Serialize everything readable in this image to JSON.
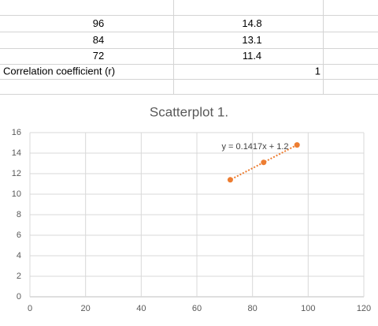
{
  "table": {
    "rows": [
      [
        96,
        14.8
      ],
      [
        84,
        13.1
      ],
      [
        72,
        11.4
      ],
      [
        "Correlation coefficient (r)",
        1
      ]
    ]
  },
  "chart_data": {
    "type": "scatter",
    "title": "Scatterplot 1.",
    "x": [
      96,
      84,
      72
    ],
    "y": [
      14.8,
      13.1,
      11.4
    ],
    "color": "#ed7d31",
    "trendline_label": "y = 0.1417x + 1.2",
    "xlim": [
      0,
      120
    ],
    "xticks": [
      0,
      20,
      40,
      60,
      80,
      100,
      120
    ],
    "ylim": [
      0,
      16
    ],
    "yticks": [
      0,
      2,
      4,
      6,
      8,
      10,
      12,
      14,
      16
    ],
    "grid": true
  }
}
